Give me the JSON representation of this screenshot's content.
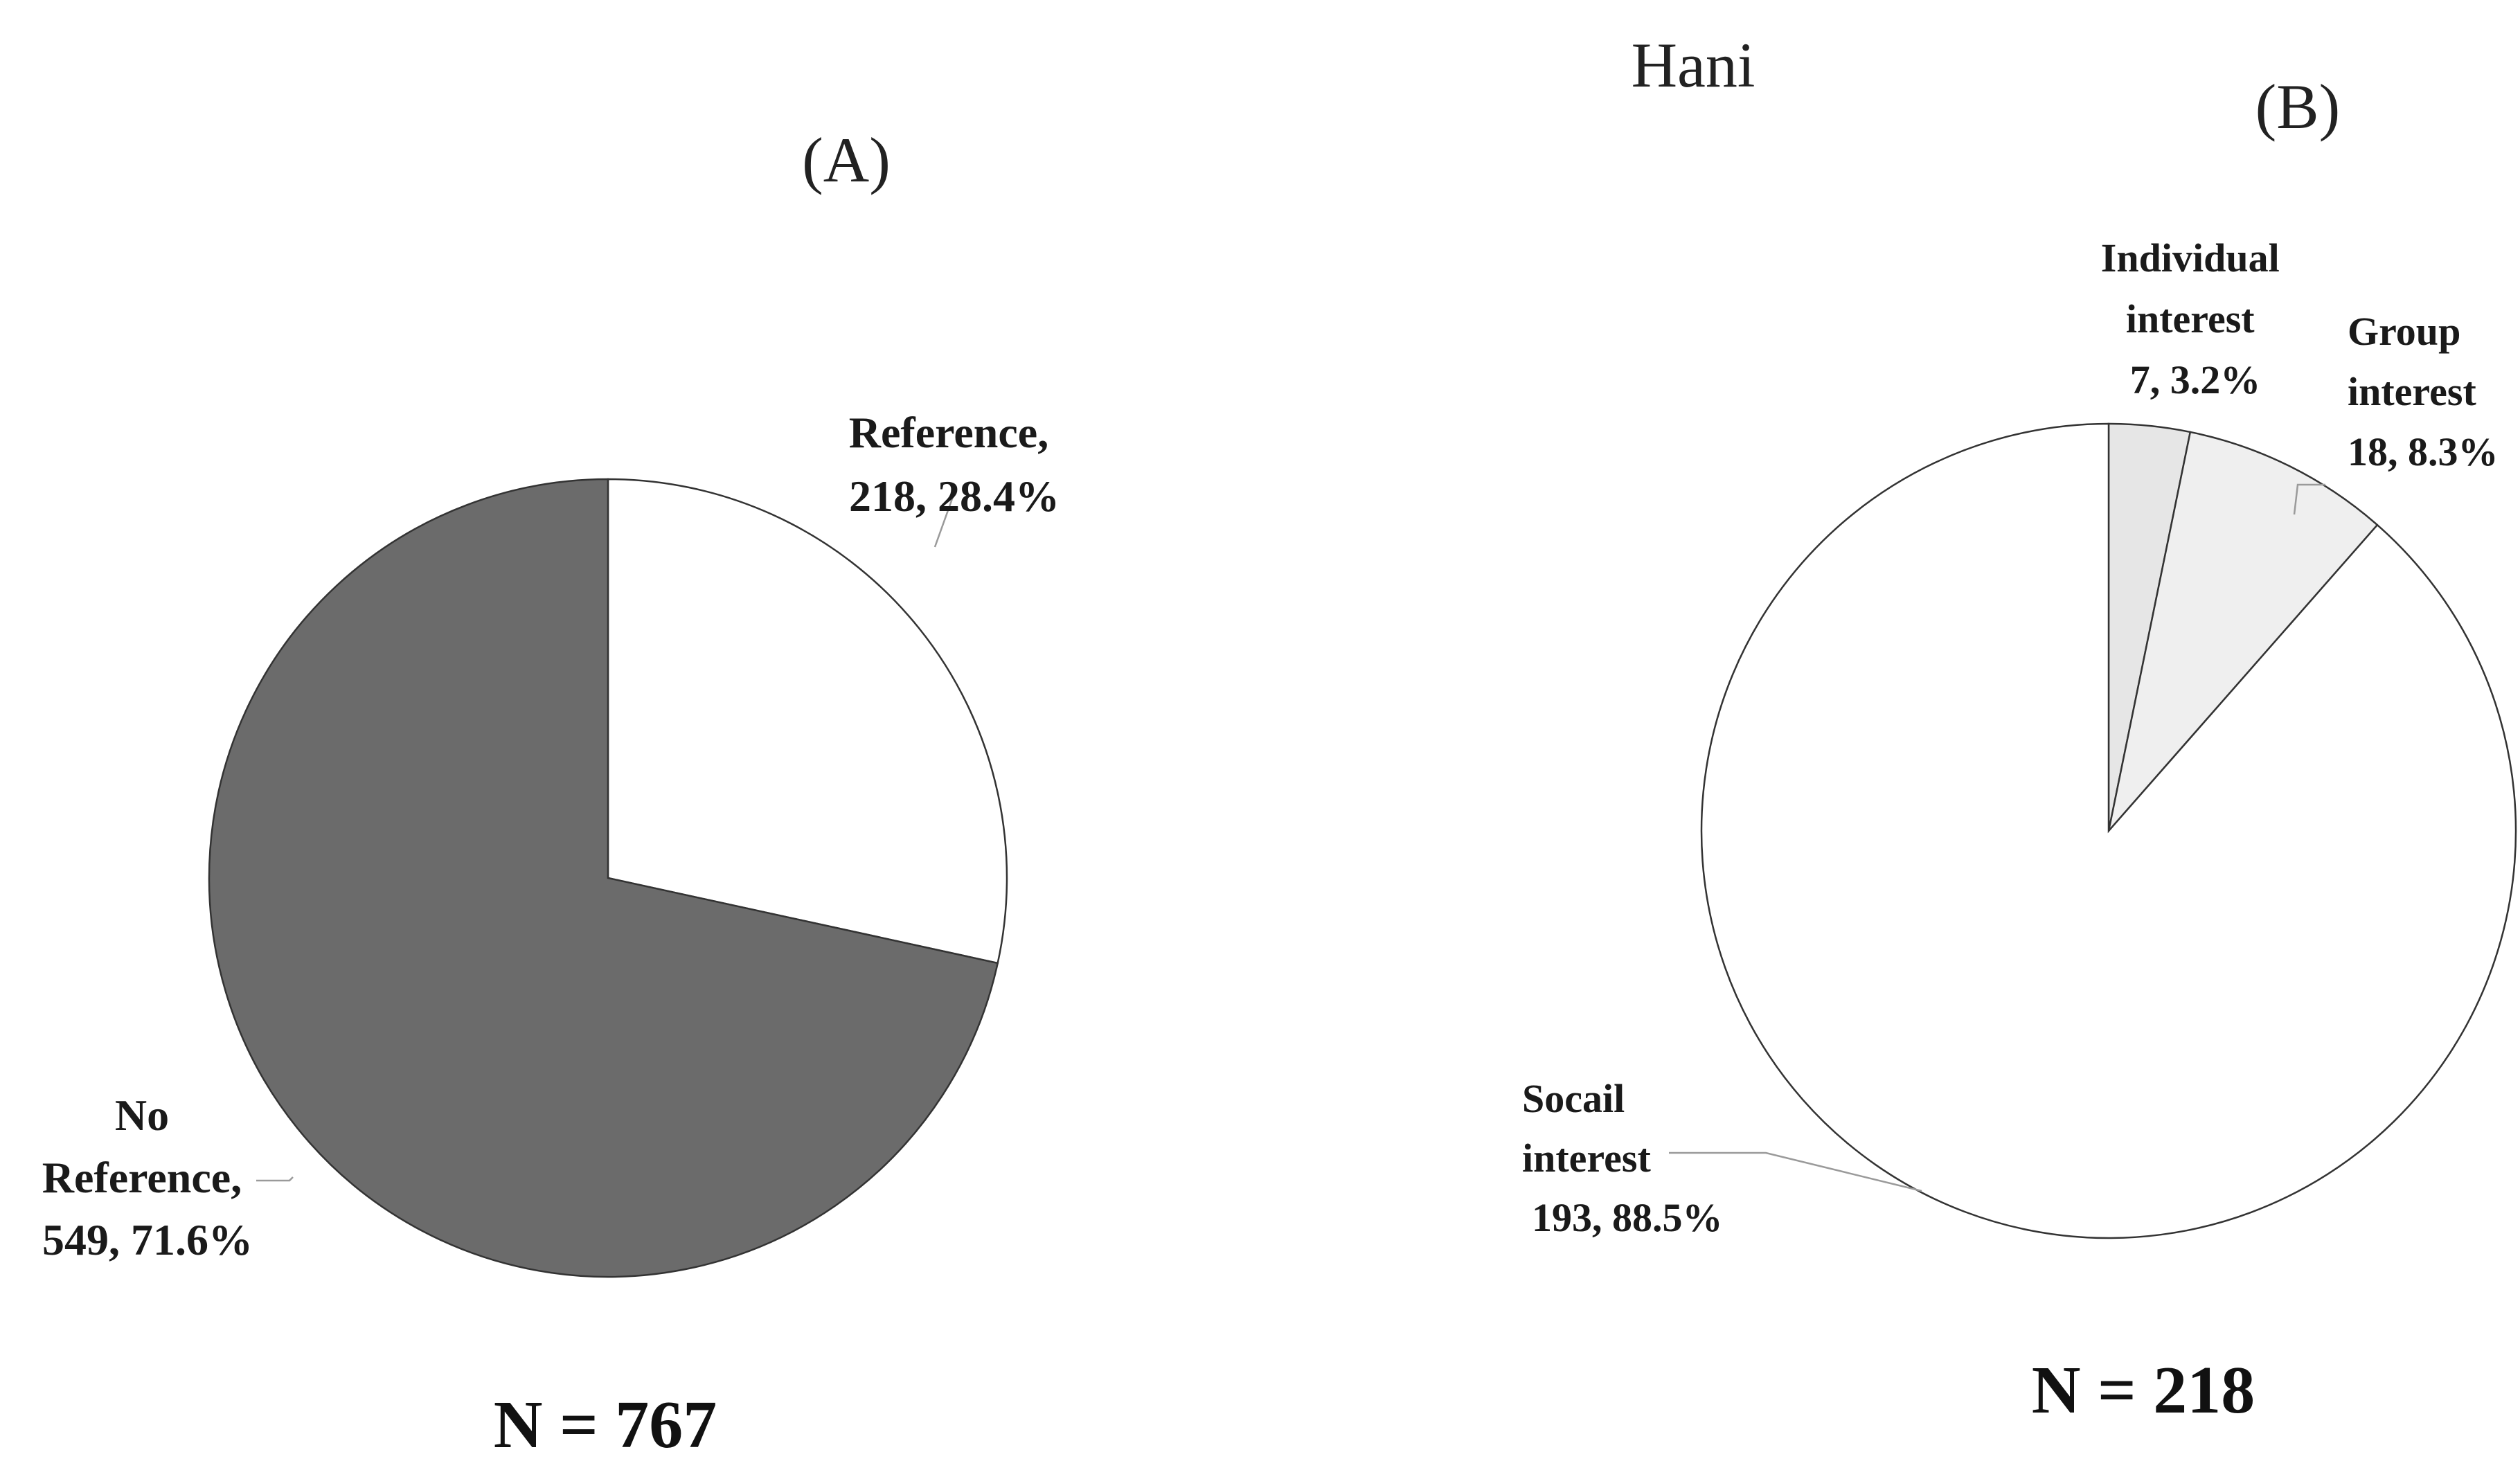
{
  "figure_title": "Hani",
  "chart_data": [
    {
      "type": "pie",
      "panel_label": "(A)",
      "total_label": "N = 767",
      "slices": [
        {
          "name": "Reference",
          "label_lines": [
            "Reference,",
            "218, 28.4%"
          ],
          "count": 218,
          "percent": 28.4,
          "color": "#ffffff"
        },
        {
          "name": "No Reference",
          "label_lines": [
            "No",
            "Reference,",
            "549, 71.6%"
          ],
          "count": 549,
          "percent": 71.6,
          "color": "#6b6b6b"
        }
      ]
    },
    {
      "type": "pie",
      "panel_label": "(B)",
      "total_label": "N = 218",
      "slices": [
        {
          "name": "Individual interest",
          "label_lines": [
            "Individual",
            "interest",
            "7, 3.2%"
          ],
          "count": 7,
          "percent": 3.2,
          "color": "#e6e6e6"
        },
        {
          "name": "Group interest",
          "label_lines": [
            "Group",
            "interest",
            "18, 8.3%"
          ],
          "count": 18,
          "percent": 8.3,
          "color": "#efefef"
        },
        {
          "name": "Socail interest",
          "label_lines": [
            "Socail",
            "interest",
            "193, 88.5%"
          ],
          "count": 193,
          "percent": 88.5,
          "color": "#ffffff"
        }
      ]
    }
  ]
}
